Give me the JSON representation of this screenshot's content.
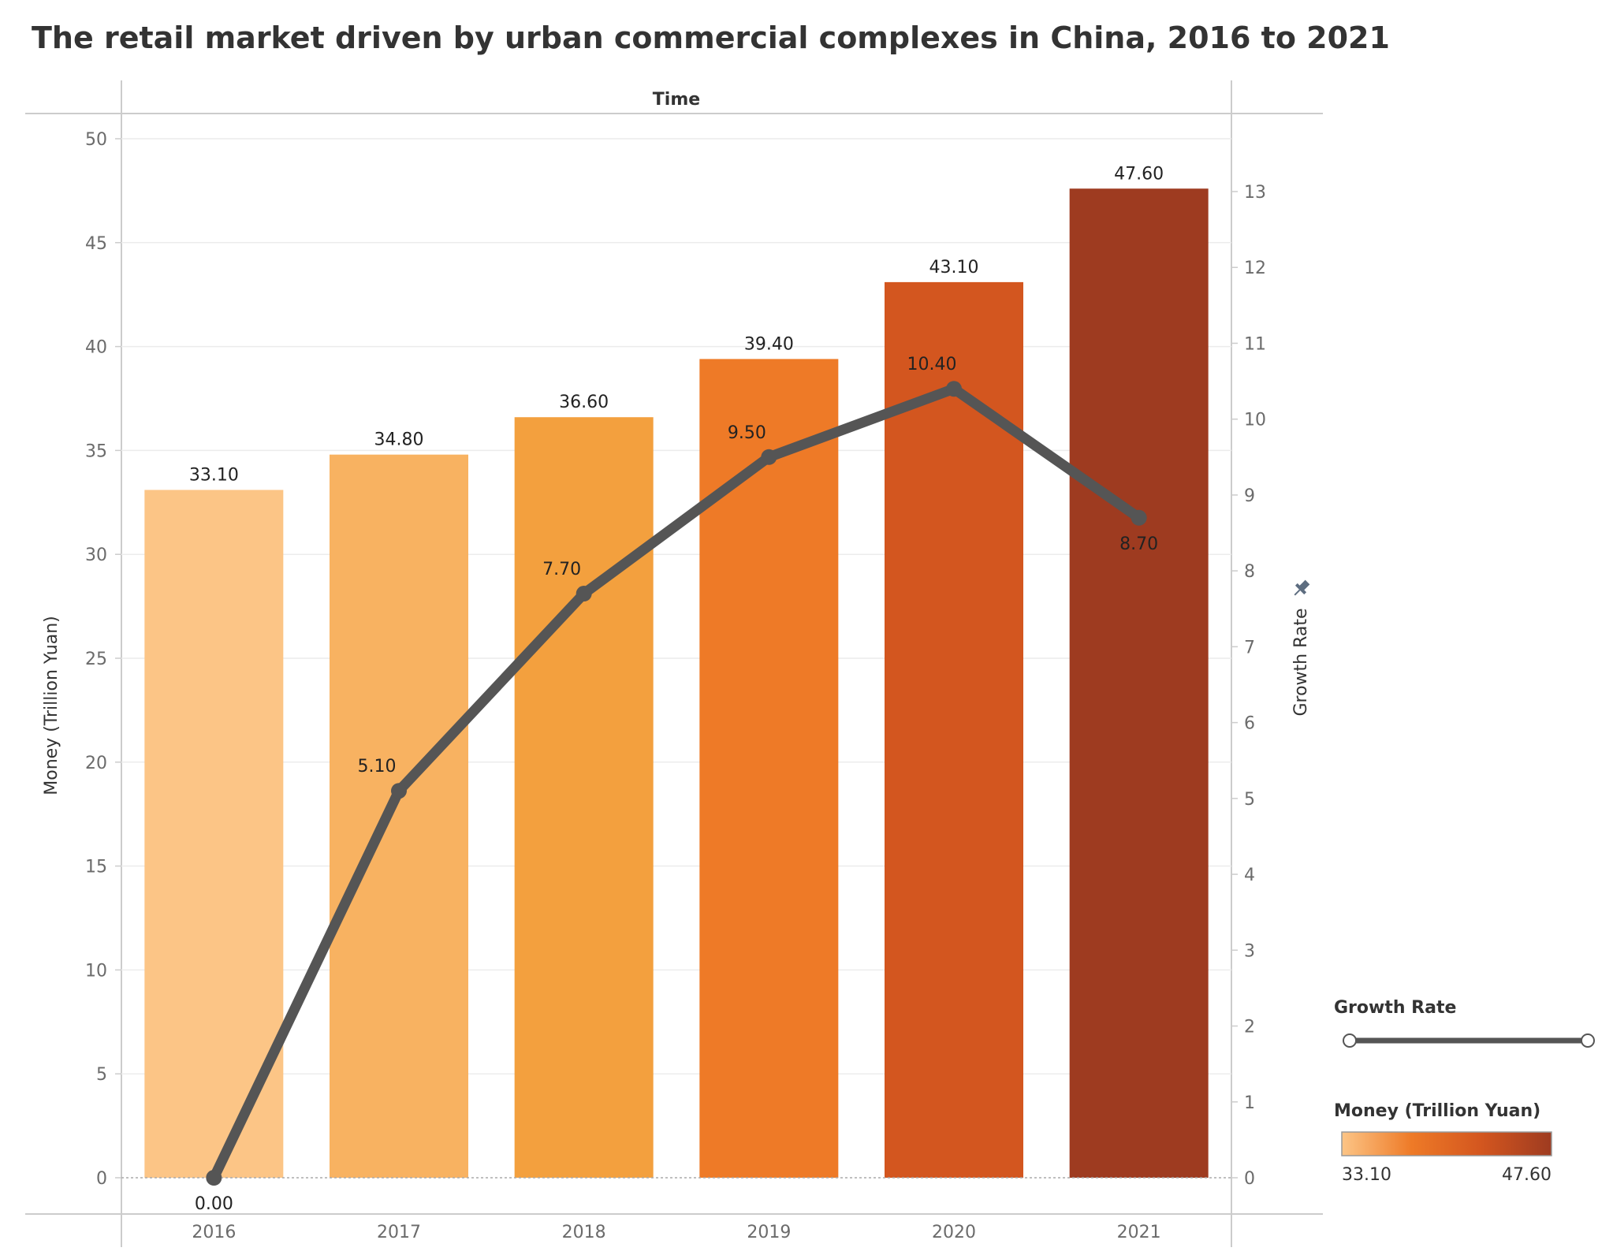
{
  "title": "The retail market driven by urban commercial complexes in China, 2016 to 2021",
  "chart_data": {
    "type": "bar",
    "title": "The retail market driven by urban commercial complexes in China, 2016 to 2021",
    "xlabel": "Time",
    "ylabel": "Money (Trillion Yuan)",
    "y2label": "Growth Rate",
    "categories": [
      "2016",
      "2017",
      "2018",
      "2019",
      "2020",
      "2021"
    ],
    "series": [
      {
        "name": "Money (Trillion Yuan)",
        "type": "bar",
        "axis": "left",
        "values": [
          33.1,
          34.8,
          36.6,
          39.4,
          43.1,
          47.6
        ],
        "labels": [
          "33.10",
          "34.80",
          "36.60",
          "39.40",
          "43.10",
          "47.60"
        ],
        "colors": [
          "#fcc586",
          "#f8b261",
          "#f3a03e",
          "#ee7a27",
          "#d3561f",
          "#9e3b20"
        ]
      },
      {
        "name": "Growth Rate",
        "type": "line",
        "axis": "right",
        "values": [
          0.0,
          5.1,
          7.7,
          9.5,
          10.4,
          8.7
        ],
        "labels": [
          "0.00",
          "5.10",
          "7.70",
          "9.50",
          "10.40",
          "8.70"
        ],
        "color": "#555555"
      }
    ],
    "ylim": [
      0,
      50
    ],
    "y_ticks": [
      "0",
      "5",
      "10",
      "15",
      "20",
      "25",
      "30",
      "35",
      "40",
      "45",
      "50"
    ],
    "y2lim": [
      0,
      13
    ],
    "y2_ticks": [
      "0",
      "1",
      "2",
      "3",
      "4",
      "5",
      "6",
      "7",
      "8",
      "9",
      "10",
      "11",
      "12",
      "13"
    ],
    "grid": true,
    "legend": {
      "placement": "bottom-right",
      "growth_title": "Growth Rate",
      "money_title": "Money (Trillion Yuan)",
      "money_min": "33.10",
      "money_max": "47.60",
      "gradient_colors": [
        "#fcc586",
        "#ee7a27",
        "#d3561f",
        "#9e3b20"
      ]
    }
  }
}
